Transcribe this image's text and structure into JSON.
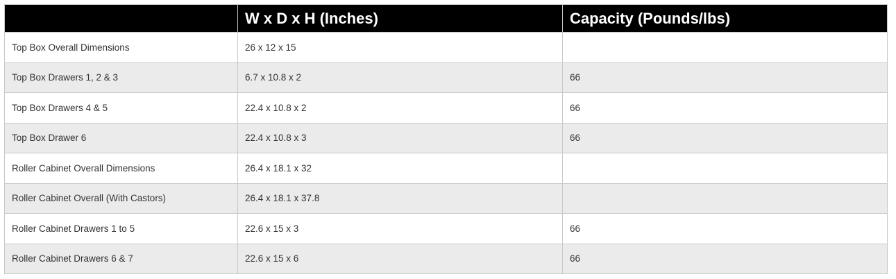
{
  "table": {
    "headers": [
      "",
      "W x D x H (Inches)",
      "Capacity (Pounds/lbs)"
    ],
    "rows": [
      [
        "Top Box Overall Dimensions",
        "26 x 12 x 15",
        ""
      ],
      [
        "Top Box Drawers 1, 2 & 3",
        "6.7 x 10.8 x 2",
        "66"
      ],
      [
        "Top Box Drawers 4 & 5",
        "22.4 x 10.8 x 2",
        "66"
      ],
      [
        "Top Box Drawer 6",
        "22.4 x 10.8 x 3",
        "66"
      ],
      [
        "Roller Cabinet Overall Dimensions",
        "26.4 x 18.1 x 32",
        ""
      ],
      [
        "Roller Cabinet Overall (With Castors)",
        "26.4 x 18.1 x 37.8",
        ""
      ],
      [
        "Roller Cabinet Drawers 1 to 5",
        "22.6 x 15 x 3",
        "66"
      ],
      [
        "Roller Cabinet Drawers 6 & 7",
        "22.6 x 15 x 6",
        "66"
      ]
    ]
  }
}
